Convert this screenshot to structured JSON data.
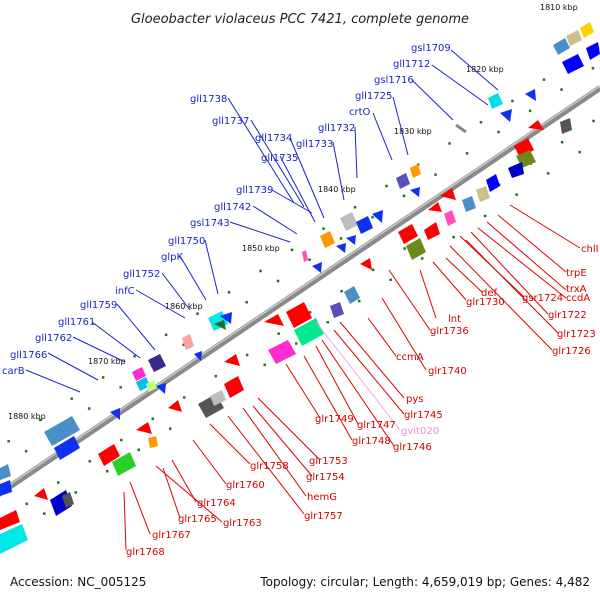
{
  "title": "Gloeobacter violaceus PCC 7421, complete genome",
  "footer": {
    "accession": "Accession: NC_005125",
    "summary": "Topology: circular; Length: 4,659,019 bp; Genes: 4,482"
  },
  "colors": {
    "backbone": "#888888",
    "forward_label": "#1a24c8",
    "reverse_label": "#d40000",
    "rna_label": "#f08cd8"
  },
  "ticks": [
    "1810 kbp",
    "1820 kbp",
    "1830 kbp",
    "1840 kbp",
    "1850 kbp",
    "1860 kbp",
    "1870 kbp",
    "1880 kbp"
  ],
  "forward_genes": [
    "gsl1709",
    "gll1712",
    "gsl1716",
    "gll1725",
    "crtO",
    "gll1732",
    "gll1733",
    "gll1734",
    "gll1735",
    "gll1737",
    "gll1738",
    "gll1739",
    "gll1742",
    "gsl1743",
    "gll1750",
    "glpK",
    "gll1752",
    "infC",
    "gll1759",
    "gll1761",
    "gll1762",
    "gll1766",
    "carB"
  ],
  "reverse_genes": [
    "chlI",
    "trpE",
    "trxA",
    "ccdA",
    "gsr1724",
    "glr1722",
    "glr1723",
    "glr1726",
    "def",
    "glr1730",
    "lnt",
    "glr1736",
    "glr1740",
    "ccmA",
    "pys",
    "glr1745",
    "gvit020",
    "glr1746",
    "glr1747",
    "glr1748",
    "glr1749",
    "glr1753",
    "glr1754",
    "hemG",
    "glr1757",
    "glr1758",
    "glr1760",
    "glr1764",
    "glr1765",
    "glr1763",
    "glr1767",
    "glr1768"
  ]
}
